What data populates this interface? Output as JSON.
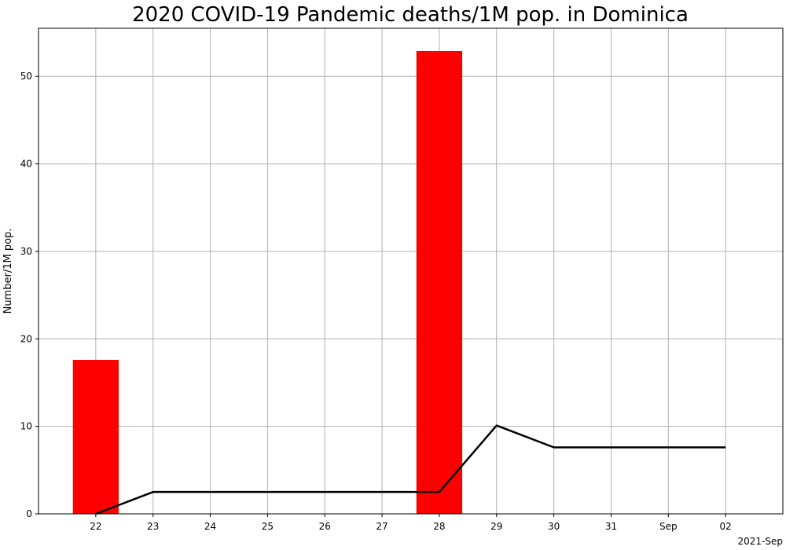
{
  "chart_data": {
    "type": "bar+line",
    "title": "2020 COVID-19 Pandemic deaths/1M pop. in Dominica",
    "xlabel": "",
    "ylabel": "Number/1M pop.",
    "x_corner_label": "2021-Sep",
    "grid": true,
    "categories": [
      "22",
      "23",
      "24",
      "25",
      "26",
      "27",
      "28",
      "29",
      "30",
      "31",
      "Sep",
      "02"
    ],
    "ylim": [
      0,
      55.5
    ],
    "yticks": [
      0,
      10,
      20,
      30,
      40,
      50
    ],
    "xlim": [
      -1,
      12
    ],
    "bars": {
      "color": "#ff0000",
      "values": [
        17.6,
        0,
        0,
        0,
        0,
        0,
        52.9,
        0,
        0,
        0,
        0,
        0
      ]
    },
    "line": {
      "color": "#000000",
      "values": [
        0,
        2.5,
        2.5,
        2.5,
        2.5,
        2.5,
        2.5,
        10.1,
        7.6,
        7.6,
        7.6,
        7.6
      ]
    }
  }
}
